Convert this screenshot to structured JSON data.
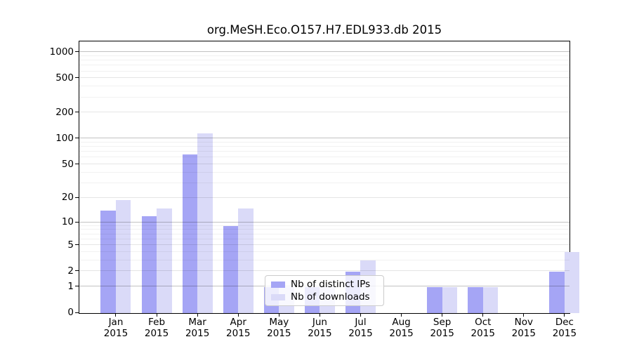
{
  "title": "org.MeSH.Eco.O157.H7.EDL933.db 2015",
  "legend": {
    "items": [
      {
        "label": "Nb of distinct IPs",
        "color": "#a5a5f5"
      },
      {
        "label": "Nb of downloads",
        "color": "#dadaf8"
      }
    ]
  },
  "y_axis": {
    "ticks": [
      {
        "label": "1000",
        "value": 1000
      },
      {
        "label": "500",
        "value": 500
      },
      {
        "label": "200",
        "value": 200
      },
      {
        "label": "100",
        "value": 100
      },
      {
        "label": "50",
        "value": 50
      },
      {
        "label": "20",
        "value": 20
      },
      {
        "label": "10",
        "value": 10
      },
      {
        "label": "5",
        "value": 5
      },
      {
        "label": "2",
        "value": 2
      },
      {
        "label": "1",
        "value": 1
      },
      {
        "label": "0",
        "value": 0
      }
    ]
  },
  "x_axis": {
    "months": [
      "Jan",
      "Feb",
      "Mar",
      "Apr",
      "May",
      "Jun",
      "Jul",
      "Aug",
      "Sep",
      "Oct",
      "Nov",
      "Dec"
    ],
    "year": "2015"
  },
  "chart_data": {
    "type": "bar",
    "title": "org.MeSH.Eco.O157.H7.EDL933.db 2015",
    "categories": [
      "Jan 2015",
      "Feb 2015",
      "Mar 2015",
      "Apr 2015",
      "May 2015",
      "Jun 2015",
      "Jul 2015",
      "Aug 2015",
      "Sep 2015",
      "Oct 2015",
      "Nov 2015",
      "Dec 2015"
    ],
    "series": [
      {
        "name": "Nb of distinct IPs",
        "color": "#a5a5f5",
        "values": [
          14,
          12,
          66,
          9,
          1,
          1,
          2,
          0,
          1,
          1,
          0,
          2
        ]
      },
      {
        "name": "Nb of downloads",
        "color": "#dadaf8",
        "values": [
          19,
          15,
          117,
          15,
          1,
          1,
          3,
          0,
          1,
          1,
          0,
          4
        ]
      }
    ],
    "y_scale": "log1p",
    "y_ticks": [
      0,
      1,
      2,
      5,
      10,
      20,
      50,
      100,
      200,
      500,
      1000
    ],
    "ylim": [
      0,
      1310
    ],
    "grid": true,
    "grid_minor": true,
    "legend_position": "lower-center",
    "bar_layout": "paired-side-by-side"
  }
}
